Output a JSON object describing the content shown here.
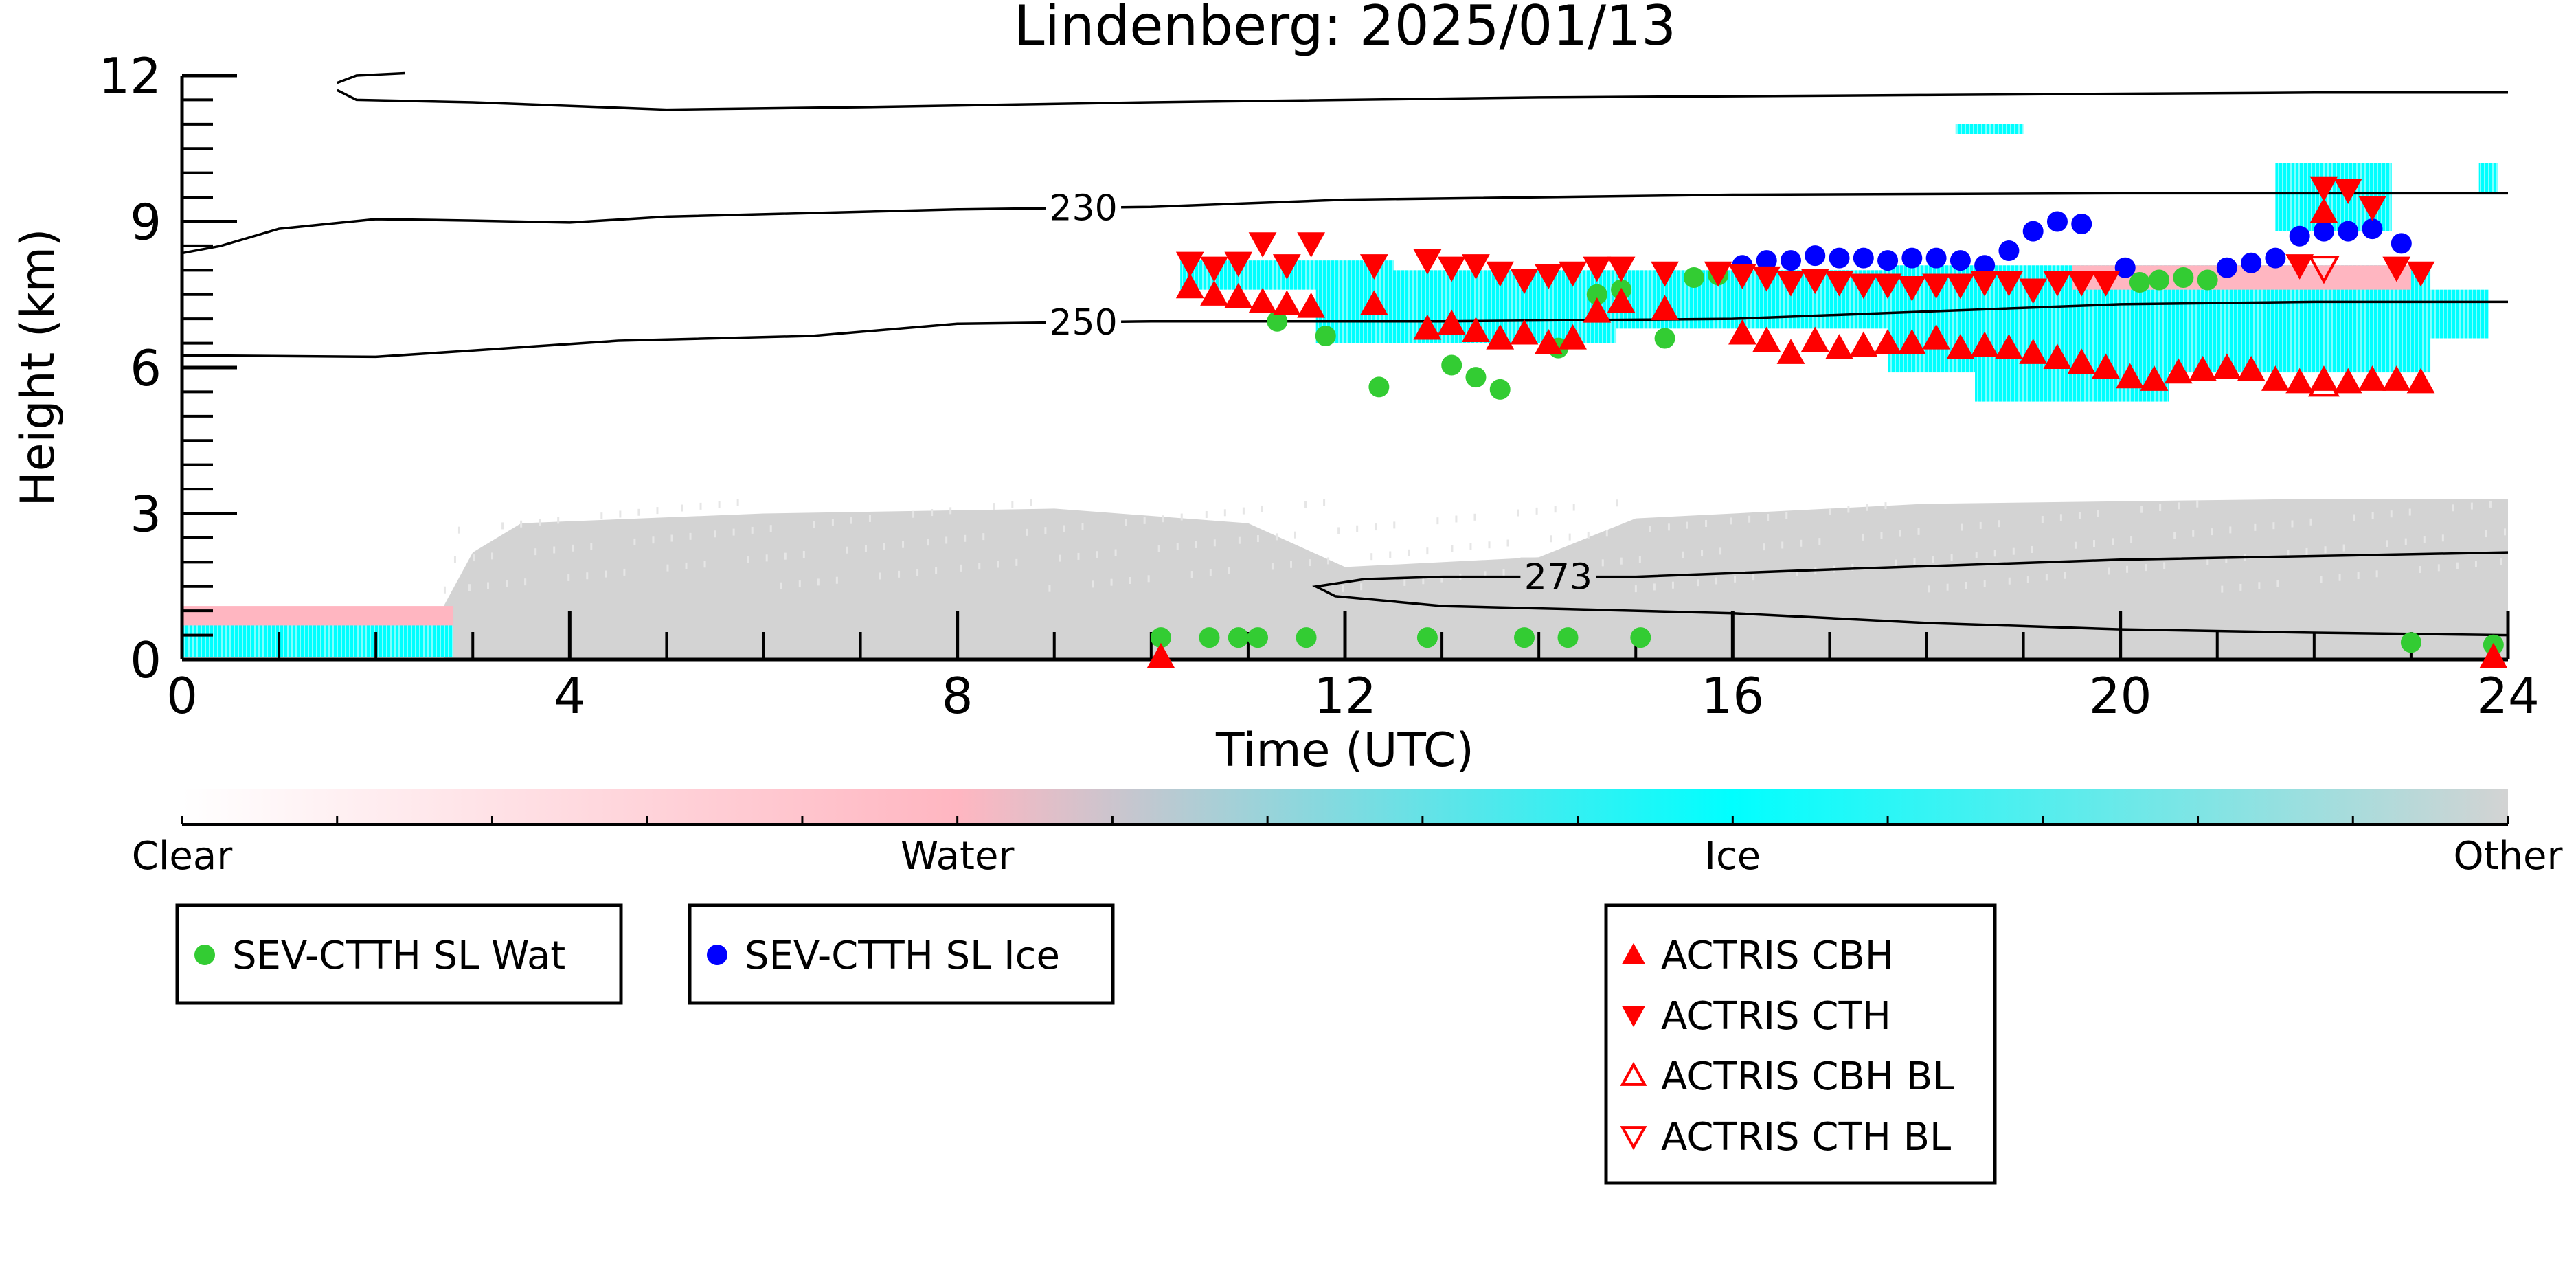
{
  "chart_data": {
    "type": "scatter",
    "title": "Lindenberg: 2025/01/13",
    "xlabel": "Time (UTC)",
    "ylabel": "Height (km)",
    "xlim": [
      0,
      24
    ],
    "ylim": [
      0,
      12
    ],
    "xticks": [
      0,
      4,
      8,
      12,
      16,
      20,
      24
    ],
    "yticks": [
      0,
      3,
      6,
      9,
      12
    ],
    "grid": false,
    "background_mask": {
      "description_levels": [
        "Clear",
        "Water",
        "Ice",
        "Other"
      ],
      "colors": {
        "Clear": "#ffffff",
        "Water": "#ffb6c1",
        "Ice": "#00ffff",
        "Other": "#d3d3d3"
      },
      "regions": [
        {
          "class": "Other",
          "x": [
            2.7,
            24
          ],
          "ybottom": 0,
          "ytop_profile": [
            [
              2.7,
              1.1
            ],
            [
              3.0,
              2.2
            ],
            [
              3.5,
              2.8
            ],
            [
              6,
              3.0
            ],
            [
              9,
              3.1
            ],
            [
              11,
              2.8
            ],
            [
              12,
              1.9
            ],
            [
              14,
              2.1
            ],
            [
              15,
              2.9
            ],
            [
              18,
              3.2
            ],
            [
              22,
              3.3
            ],
            [
              24,
              3.3
            ]
          ]
        },
        {
          "class": "Water",
          "x": [
            0,
            2.8
          ],
          "y": [
            0.5,
            1.1
          ]
        },
        {
          "class": "Ice",
          "x": [
            0,
            2.8
          ],
          "y": [
            0.05,
            0.7
          ]
        },
        {
          "class": "Ice",
          "x": [
            10.3,
            12.5
          ],
          "y": [
            7.6,
            8.2
          ]
        },
        {
          "class": "Ice",
          "x": [
            11.7,
            14.8
          ],
          "y": [
            6.5,
            8.0
          ]
        },
        {
          "class": "Ice",
          "x": [
            14.8,
            17.6
          ],
          "y": [
            6.8,
            8.0
          ]
        },
        {
          "class": "Ice",
          "x": [
            17.6,
            23.2
          ],
          "y": [
            5.9,
            8.1
          ]
        },
        {
          "class": "Ice",
          "x": [
            18.5,
            20.5
          ],
          "y": [
            5.3,
            6.0
          ]
        },
        {
          "class": "Water",
          "x": [
            19.5,
            23.0
          ],
          "y": [
            7.6,
            8.1
          ]
        },
        {
          "class": "Ice",
          "x": [
            21.6,
            22.8
          ],
          "y": [
            8.8,
            10.2
          ]
        },
        {
          "class": "Ice",
          "x": [
            23.2,
            23.8
          ],
          "y": [
            6.6,
            7.6
          ]
        },
        {
          "class": "Ice",
          "x": [
            18.3,
            19.0
          ],
          "y": [
            10.8,
            11.0
          ]
        },
        {
          "class": "Ice",
          "x": [
            23.7,
            23.9
          ],
          "y": [
            9.6,
            10.2
          ]
        }
      ]
    },
    "contours": [
      {
        "label": "",
        "points": [
          [
            1.6,
            11.85
          ],
          [
            1.8,
            12.0
          ],
          [
            2.3,
            12.05
          ]
        ]
      },
      {
        "label": "",
        "points": [
          [
            1.6,
            11.7
          ],
          [
            1.8,
            11.5
          ],
          [
            3.0,
            11.45
          ],
          [
            5.0,
            11.3
          ],
          [
            7.0,
            11.35
          ],
          [
            10.0,
            11.45
          ],
          [
            14.0,
            11.55
          ],
          [
            18.0,
            11.6
          ],
          [
            22.0,
            11.65
          ],
          [
            24.0,
            11.65
          ]
        ]
      },
      {
        "label": "230",
        "label_x": 9.3,
        "points": [
          [
            0,
            8.35
          ],
          [
            0.4,
            8.5
          ],
          [
            1.0,
            8.85
          ],
          [
            2.0,
            9.05
          ],
          [
            3.0,
            9.02
          ],
          [
            4.0,
            8.98
          ],
          [
            5.0,
            9.1
          ],
          [
            8.0,
            9.25
          ],
          [
            10.0,
            9.3
          ],
          [
            12.0,
            9.45
          ],
          [
            16.0,
            9.55
          ],
          [
            20.0,
            9.58
          ],
          [
            24.0,
            9.58
          ]
        ]
      },
      {
        "label": "250",
        "label_x": 9.3,
        "points": [
          [
            0,
            6.25
          ],
          [
            2.0,
            6.22
          ],
          [
            3.0,
            6.35
          ],
          [
            4.5,
            6.55
          ],
          [
            6.5,
            6.65
          ],
          [
            8.0,
            6.9
          ],
          [
            10.0,
            6.95
          ],
          [
            13.0,
            6.95
          ],
          [
            16.0,
            7.0
          ],
          [
            18.0,
            7.15
          ],
          [
            20.0,
            7.3
          ],
          [
            22.0,
            7.35
          ],
          [
            24.0,
            7.35
          ]
        ]
      },
      {
        "label": "273",
        "label_x": 14.2,
        "points": [
          [
            24.0,
            2.2
          ],
          [
            20.0,
            2.05
          ],
          [
            17.0,
            1.85
          ],
          [
            15.0,
            1.7
          ],
          [
            13.0,
            1.7
          ],
          [
            12.2,
            1.65
          ],
          [
            11.7,
            1.5
          ],
          [
            11.9,
            1.3
          ],
          [
            13.0,
            1.1
          ],
          [
            16.0,
            0.95
          ],
          [
            18.0,
            0.75
          ],
          [
            20.0,
            0.62
          ],
          [
            22.0,
            0.55
          ],
          [
            24.0,
            0.5
          ]
        ]
      }
    ],
    "series": [
      {
        "name": "SEV-CTTH SL Wat",
        "marker": "circle",
        "color": "#33cc33",
        "points": [
          [
            10.1,
            0.45
          ],
          [
            10.6,
            0.45
          ],
          [
            10.9,
            0.45
          ],
          [
            11.1,
            0.45
          ],
          [
            11.6,
            0.45
          ],
          [
            12.85,
            0.45
          ],
          [
            13.85,
            0.45
          ],
          [
            14.3,
            0.45
          ],
          [
            15.05,
            0.45
          ],
          [
            23.0,
            0.35
          ],
          [
            23.85,
            0.3
          ],
          [
            11.3,
            6.95
          ],
          [
            11.8,
            6.65
          ],
          [
            12.35,
            5.6
          ],
          [
            13.1,
            6.05
          ],
          [
            13.35,
            5.8
          ],
          [
            13.6,
            5.55
          ],
          [
            14.2,
            6.4
          ],
          [
            14.6,
            7.5
          ],
          [
            14.85,
            7.6
          ],
          [
            15.3,
            6.6
          ],
          [
            15.6,
            7.85
          ],
          [
            15.85,
            7.9
          ],
          [
            20.2,
            7.75
          ],
          [
            20.4,
            7.8
          ],
          [
            20.65,
            7.85
          ],
          [
            20.9,
            7.8
          ]
        ]
      },
      {
        "name": "SEV-CTTH SL Ice",
        "marker": "circle",
        "color": "#0000ff",
        "points": [
          [
            16.1,
            8.1
          ],
          [
            16.35,
            8.2
          ],
          [
            16.6,
            8.2
          ],
          [
            16.85,
            8.3
          ],
          [
            17.1,
            8.25
          ],
          [
            17.35,
            8.25
          ],
          [
            17.6,
            8.2
          ],
          [
            17.85,
            8.25
          ],
          [
            18.1,
            8.25
          ],
          [
            18.35,
            8.2
          ],
          [
            18.6,
            8.1
          ],
          [
            18.85,
            8.4
          ],
          [
            19.1,
            8.8
          ],
          [
            19.35,
            9.0
          ],
          [
            19.6,
            8.95
          ],
          [
            20.05,
            8.05
          ],
          [
            21.1,
            8.05
          ],
          [
            21.35,
            8.15
          ],
          [
            21.6,
            8.25
          ],
          [
            21.85,
            8.7
          ],
          [
            22.1,
            8.8
          ],
          [
            22.35,
            8.8
          ],
          [
            22.6,
            8.85
          ],
          [
            22.9,
            8.55
          ]
        ]
      },
      {
        "name": "ACTRIS CBH",
        "marker": "triangle-up",
        "color": "#ff0000",
        "filled": true,
        "points": [
          [
            10.1,
            0.05
          ],
          [
            10.4,
            7.65
          ],
          [
            10.65,
            7.5
          ],
          [
            10.9,
            7.45
          ],
          [
            11.15,
            7.35
          ],
          [
            11.4,
            7.3
          ],
          [
            11.65,
            7.25
          ],
          [
            12.3,
            7.3
          ],
          [
            12.85,
            6.8
          ],
          [
            13.1,
            6.9
          ],
          [
            13.35,
            6.75
          ],
          [
            13.6,
            6.6
          ],
          [
            13.85,
            6.7
          ],
          [
            14.1,
            6.5
          ],
          [
            14.35,
            6.6
          ],
          [
            14.6,
            7.15
          ],
          [
            14.85,
            7.35
          ],
          [
            15.3,
            7.2
          ],
          [
            16.1,
            6.7
          ],
          [
            16.35,
            6.55
          ],
          [
            16.6,
            6.3
          ],
          [
            16.85,
            6.55
          ],
          [
            17.1,
            6.4
          ],
          [
            17.35,
            6.45
          ],
          [
            17.6,
            6.5
          ],
          [
            17.85,
            6.5
          ],
          [
            18.1,
            6.6
          ],
          [
            18.35,
            6.4
          ],
          [
            18.6,
            6.45
          ],
          [
            18.85,
            6.4
          ],
          [
            19.1,
            6.3
          ],
          [
            19.35,
            6.2
          ],
          [
            19.6,
            6.1
          ],
          [
            19.85,
            6.0
          ],
          [
            20.1,
            5.8
          ],
          [
            20.35,
            5.75
          ],
          [
            20.6,
            5.9
          ],
          [
            20.85,
            5.95
          ],
          [
            21.1,
            6.0
          ],
          [
            21.35,
            5.95
          ],
          [
            21.6,
            5.75
          ],
          [
            21.85,
            5.7
          ],
          [
            22.1,
            5.75
          ],
          [
            22.35,
            5.7
          ],
          [
            22.6,
            5.75
          ],
          [
            22.85,
            5.75
          ],
          [
            23.1,
            5.7
          ],
          [
            22.1,
            9.2
          ],
          [
            23.85,
            0.05
          ]
        ]
      },
      {
        "name": "ACTRIS CTH",
        "marker": "triangle-down",
        "color": "#ff0000",
        "filled": true,
        "points": [
          [
            10.4,
            8.15
          ],
          [
            10.65,
            8.05
          ],
          [
            10.9,
            8.15
          ],
          [
            11.15,
            8.55
          ],
          [
            11.4,
            8.1
          ],
          [
            11.65,
            8.55
          ],
          [
            12.3,
            8.1
          ],
          [
            12.85,
            8.2
          ],
          [
            13.1,
            8.05
          ],
          [
            13.35,
            8.1
          ],
          [
            13.6,
            7.95
          ],
          [
            13.85,
            7.8
          ],
          [
            14.1,
            7.9
          ],
          [
            14.35,
            7.95
          ],
          [
            14.6,
            8.05
          ],
          [
            14.85,
            8.05
          ],
          [
            15.3,
            7.95
          ],
          [
            15.85,
            7.95
          ],
          [
            16.1,
            7.9
          ],
          [
            16.35,
            7.85
          ],
          [
            16.6,
            7.75
          ],
          [
            16.85,
            7.8
          ],
          [
            17.1,
            7.75
          ],
          [
            17.35,
            7.7
          ],
          [
            17.6,
            7.7
          ],
          [
            17.85,
            7.65
          ],
          [
            18.1,
            7.7
          ],
          [
            18.35,
            7.7
          ],
          [
            18.6,
            7.75
          ],
          [
            18.85,
            7.75
          ],
          [
            19.1,
            7.6
          ],
          [
            19.35,
            7.75
          ],
          [
            19.6,
            7.75
          ],
          [
            19.85,
            7.75
          ],
          [
            21.85,
            8.1
          ],
          [
            22.1,
            9.7
          ],
          [
            22.35,
            9.65
          ],
          [
            22.6,
            9.3
          ],
          [
            22.85,
            8.05
          ],
          [
            23.1,
            7.95
          ]
        ]
      },
      {
        "name": "ACTRIS CBH BL",
        "marker": "triangle-up",
        "color": "#ff0000",
        "filled": false,
        "points": [
          [
            22.1,
            5.65
          ]
        ]
      },
      {
        "name": "ACTRIS CTH BL",
        "marker": "triangle-down",
        "color": "#ff0000",
        "filled": false,
        "points": [
          [
            22.1,
            8.05
          ]
        ]
      }
    ],
    "legends": [
      {
        "position": "bottom-left",
        "entries": [
          "SEV-CTTH SL Wat"
        ]
      },
      {
        "position": "bottom-center-left",
        "entries": [
          "SEV-CTTH SL Ice"
        ]
      },
      {
        "position": "bottom-right",
        "entries": [
          "ACTRIS CBH",
          "ACTRIS CTH",
          "ACTRIS CBH BL",
          "ACTRIS CTH BL"
        ]
      }
    ],
    "colorbar": {
      "labels": [
        "Clear",
        "Water",
        "Ice",
        "Other"
      ],
      "colors": [
        "#ffffff",
        "#ffb6c1",
        "#00ffff",
        "#d3d3d3"
      ]
    }
  }
}
